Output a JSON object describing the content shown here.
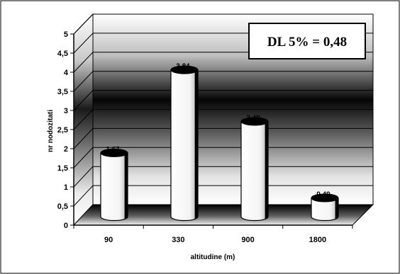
{
  "chart_data": {
    "type": "bar",
    "categories": [
      "90",
      "330",
      "900",
      "1800"
    ],
    "values": [
      1.67,
      3.84,
      2.49,
      0.49
    ],
    "data_labels": [
      "1,67",
      "3,84",
      "2,49",
      "0,49"
    ],
    "title": "",
    "xlabel": "altitudine (m)",
    "ylabel": "nr nodozitati",
    "ylim": [
      0,
      5
    ],
    "yticks": [
      "0",
      "0,5",
      "1",
      "1,5",
      "2",
      "2,5",
      "3",
      "3,5",
      "4",
      "4,5",
      "5"
    ],
    "annotation": "DL 5% = 0,48",
    "grid": true,
    "legend": "none",
    "colors": {
      "bar_fill": "#ffffff",
      "bar_edge": "#000000",
      "wall_dark": "#000000",
      "wall_light": "#ffffff",
      "grid": "#000000"
    }
  }
}
